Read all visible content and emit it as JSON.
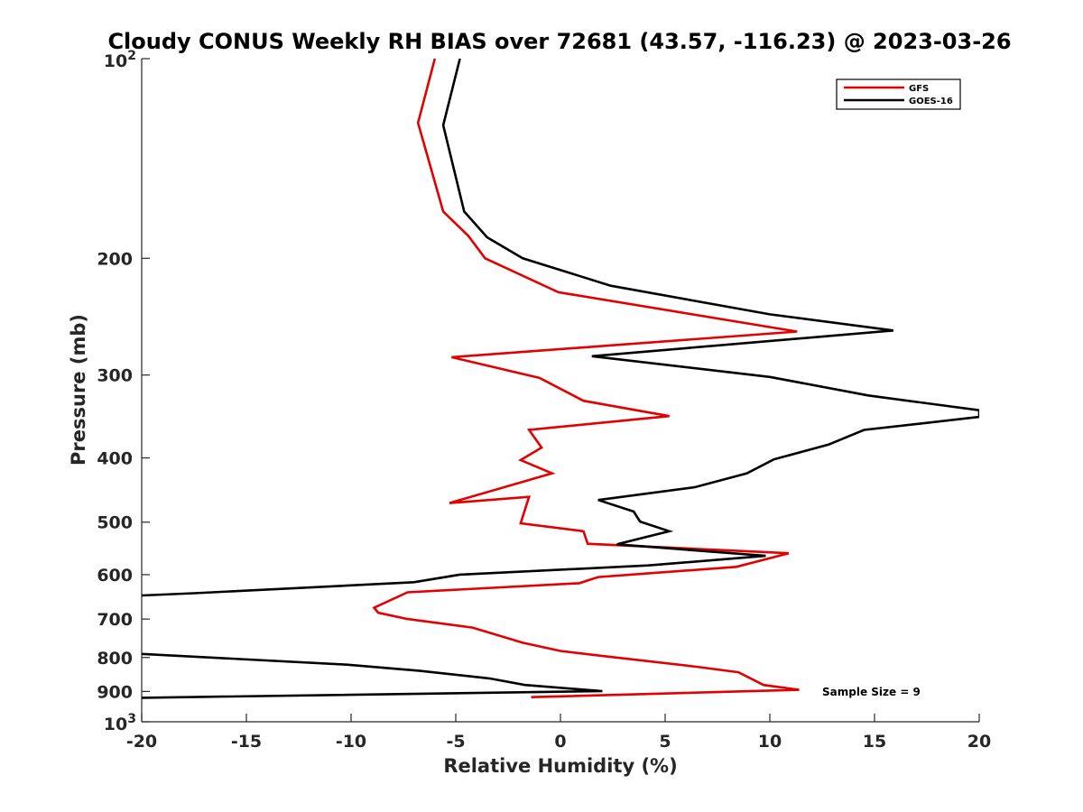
{
  "chart_data": {
    "type": "line",
    "title": "Cloudy CONUS Weekly RH BIAS over 72681 (43.57, -116.23) @ 2023-03-26",
    "xlabel": "Relative Humidity (%)",
    "ylabel": "Pressure (mb)",
    "xlim": [
      -20,
      20
    ],
    "ylim": [
      100,
      1000
    ],
    "y_scale": "log",
    "y_reversed": true,
    "grid": false,
    "legend_position": "top-right",
    "x_ticks": [
      "-20",
      "-15",
      "-10",
      "-5",
      "0",
      "5",
      "10",
      "15",
      "20"
    ],
    "y_ticks": [
      {
        "value": 100,
        "label": "10",
        "sup": "2"
      },
      {
        "value": 200,
        "label": "200"
      },
      {
        "value": 300,
        "label": "300"
      },
      {
        "value": 400,
        "label": "400"
      },
      {
        "value": 500,
        "label": "500"
      },
      {
        "value": 600,
        "label": "600"
      },
      {
        "value": 700,
        "label": "700"
      },
      {
        "value": 800,
        "label": "800"
      },
      {
        "value": 900,
        "label": "900"
      },
      {
        "value": 1000,
        "label": "10",
        "sup": "3"
      }
    ],
    "annotation": "Sample Size = 9",
    "series": [
      {
        "name": "GFS",
        "color": "#e30000",
        "points": [
          {
            "x": -6.0,
            "p": 100
          },
          {
            "x": -6.8,
            "p": 125
          },
          {
            "x": -5.6,
            "p": 170
          },
          {
            "x": -4.4,
            "p": 185
          },
          {
            "x": -3.6,
            "p": 200
          },
          {
            "x": -0.1,
            "p": 225
          },
          {
            "x": 11.3,
            "p": 258
          },
          {
            "x": -5.2,
            "p": 282
          },
          {
            "x": -1.0,
            "p": 303
          },
          {
            "x": 1.1,
            "p": 328
          },
          {
            "x": 5.2,
            "p": 346
          },
          {
            "x": -1.5,
            "p": 363
          },
          {
            "x": -0.9,
            "p": 386
          },
          {
            "x": -1.9,
            "p": 403
          },
          {
            "x": -0.4,
            "p": 422
          },
          {
            "x": -5.3,
            "p": 468
          },
          {
            "x": -1.5,
            "p": 458
          },
          {
            "x": -1.9,
            "p": 502
          },
          {
            "x": 1.1,
            "p": 516
          },
          {
            "x": 1.3,
            "p": 539
          },
          {
            "x": 10.9,
            "p": 557
          },
          {
            "x": 8.4,
            "p": 584
          },
          {
            "x": 1.8,
            "p": 605
          },
          {
            "x": 0.9,
            "p": 618
          },
          {
            "x": -7.3,
            "p": 638
          },
          {
            "x": -8.9,
            "p": 673
          },
          {
            "x": -8.7,
            "p": 685
          },
          {
            "x": -7.3,
            "p": 700
          },
          {
            "x": -4.2,
            "p": 721
          },
          {
            "x": -1.8,
            "p": 760
          },
          {
            "x": 0.0,
            "p": 782
          },
          {
            "x": 2.2,
            "p": 797
          },
          {
            "x": 6.5,
            "p": 826
          },
          {
            "x": 8.5,
            "p": 842
          },
          {
            "x": 9.7,
            "p": 880
          },
          {
            "x": 11.4,
            "p": 895
          },
          {
            "x": -1.4,
            "p": 918
          }
        ]
      },
      {
        "name": "GOES-16",
        "color": "#000000",
        "points": [
          {
            "x": -4.8,
            "p": 100
          },
          {
            "x": -5.6,
            "p": 126
          },
          {
            "x": -4.6,
            "p": 170
          },
          {
            "x": -3.5,
            "p": 186
          },
          {
            "x": -1.8,
            "p": 200
          },
          {
            "x": 2.4,
            "p": 220
          },
          {
            "x": 10.0,
            "p": 243
          },
          {
            "x": 15.9,
            "p": 257
          },
          {
            "x": 1.5,
            "p": 281
          },
          {
            "x": 10.0,
            "p": 302
          },
          {
            "x": 14.7,
            "p": 322
          },
          {
            "x": 20.0,
            "p": 339
          },
          {
            "x": 20.0,
            "p": 347
          },
          {
            "x": 14.5,
            "p": 363
          },
          {
            "x": 12.8,
            "p": 382
          },
          {
            "x": 10.2,
            "p": 402
          },
          {
            "x": 8.9,
            "p": 422
          },
          {
            "x": 6.4,
            "p": 443
          },
          {
            "x": 1.8,
            "p": 463
          },
          {
            "x": 3.5,
            "p": 482
          },
          {
            "x": 3.8,
            "p": 499
          },
          {
            "x": 5.2,
            "p": 516
          },
          {
            "x": 2.7,
            "p": 540
          },
          {
            "x": 9.8,
            "p": 562
          },
          {
            "x": 4.2,
            "p": 581
          },
          {
            "x": -4.8,
            "p": 600
          },
          {
            "x": -7.0,
            "p": 616
          },
          {
            "x": -17.5,
            "p": 640
          },
          {
            "x": -20.0,
            "p": 645
          }
        ]
      },
      {
        "name": "",
        "color": "#000000",
        "points": [
          {
            "x": -20.0,
            "p": 790
          },
          {
            "x": -10.2,
            "p": 820
          },
          {
            "x": -6.7,
            "p": 838
          },
          {
            "x": -3.4,
            "p": 860
          },
          {
            "x": -1.7,
            "p": 880
          },
          {
            "x": 2.0,
            "p": 899
          },
          {
            "x": -20.0,
            "p": 920
          }
        ]
      }
    ]
  }
}
